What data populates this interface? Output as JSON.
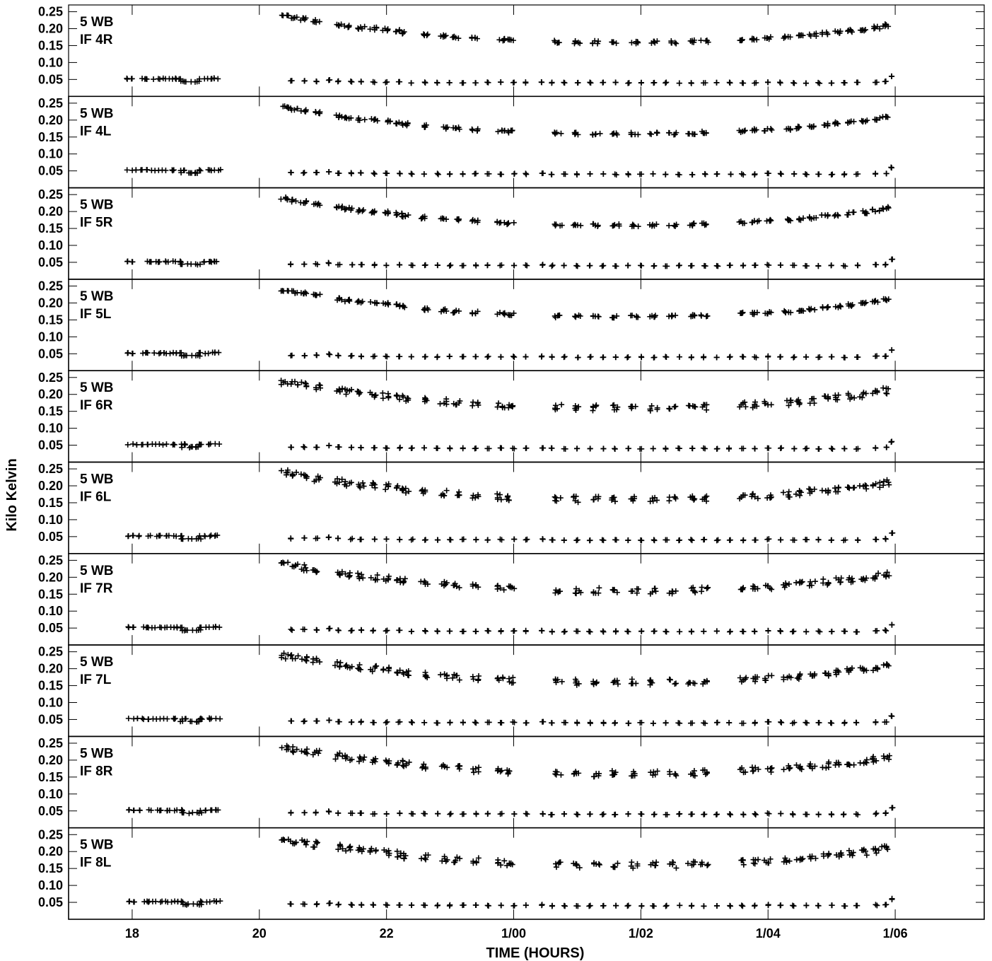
{
  "chart_data": {
    "type": "scatter",
    "xlabel": "TIME (HOURS)",
    "ylabel": "Kilo Kelvin",
    "xlim": [
      17.0,
      31.4
    ],
    "ylim": [
      0.0,
      0.27
    ],
    "x_ticks": [
      {
        "value": 18,
        "label": "18"
      },
      {
        "value": 20,
        "label": "20"
      },
      {
        "value": 22,
        "label": "22"
      },
      {
        "value": 24,
        "label": "1/00"
      },
      {
        "value": 26,
        "label": "1/02"
      },
      {
        "value": 28,
        "label": "1/04"
      },
      {
        "value": 30,
        "label": "1/06"
      }
    ],
    "y_ticks": [
      {
        "value": 0.25,
        "label": "0.25"
      },
      {
        "value": 0.2,
        "label": "0.20"
      },
      {
        "value": 0.15,
        "label": "0.15"
      },
      {
        "value": 0.1,
        "label": "0.10"
      },
      {
        "value": 0.05,
        "label": "0.05"
      }
    ],
    "marker": "+",
    "panels": [
      {
        "line1": "5 WB",
        "line2": "IF 4R"
      },
      {
        "line1": "5 WB",
        "line2": "IF 4L"
      },
      {
        "line1": "5 WB",
        "line2": "IF 5R"
      },
      {
        "line1": "5 WB",
        "line2": "IF 5L"
      },
      {
        "line1": "5 WB",
        "line2": "IF 6R"
      },
      {
        "line1": "5 WB",
        "line2": "IF 6L"
      },
      {
        "line1": "5 WB",
        "line2": "IF 7R"
      },
      {
        "line1": "5 WB",
        "line2": "IF 7L"
      },
      {
        "line1": "5 WB",
        "line2": "IF 8R"
      },
      {
        "line1": "5 WB",
        "line2": "IF 8L"
      }
    ],
    "series": [
      {
        "role": "calibrator",
        "points": [
          [
            18.0,
            0.052
          ],
          [
            18.2,
            0.052
          ],
          [
            18.4,
            0.052
          ],
          [
            18.6,
            0.052
          ],
          [
            18.75,
            0.052
          ],
          [
            18.85,
            0.044
          ],
          [
            19.0,
            0.044
          ],
          [
            19.15,
            0.052
          ],
          [
            19.3,
            0.053
          ],
          [
            20.5,
            0.045
          ],
          [
            20.7,
            0.045
          ],
          [
            20.9,
            0.045
          ],
          [
            21.1,
            0.048
          ],
          [
            21.25,
            0.044
          ],
          [
            21.45,
            0.043
          ],
          [
            21.6,
            0.043
          ],
          [
            21.8,
            0.042
          ],
          [
            22.0,
            0.042
          ],
          [
            22.2,
            0.042
          ],
          [
            22.4,
            0.041
          ],
          [
            22.6,
            0.041
          ],
          [
            22.8,
            0.041
          ],
          [
            23.0,
            0.041
          ],
          [
            23.2,
            0.041
          ],
          [
            23.4,
            0.041
          ],
          [
            23.6,
            0.041
          ],
          [
            23.8,
            0.041
          ],
          [
            24.0,
            0.041
          ],
          [
            24.2,
            0.041
          ],
          [
            24.45,
            0.042
          ],
          [
            24.6,
            0.04
          ],
          [
            24.8,
            0.04
          ],
          [
            25.0,
            0.04
          ],
          [
            25.2,
            0.04
          ],
          [
            25.4,
            0.04
          ],
          [
            25.6,
            0.04
          ],
          [
            25.8,
            0.04
          ],
          [
            26.0,
            0.04
          ],
          [
            26.2,
            0.04
          ],
          [
            26.4,
            0.04
          ],
          [
            26.6,
            0.04
          ],
          [
            26.8,
            0.04
          ],
          [
            27.0,
            0.04
          ],
          [
            27.2,
            0.04
          ],
          [
            27.4,
            0.04
          ],
          [
            27.6,
            0.04
          ],
          [
            27.8,
            0.04
          ],
          [
            28.0,
            0.042
          ],
          [
            28.2,
            0.041
          ],
          [
            28.4,
            0.04
          ],
          [
            28.6,
            0.04
          ],
          [
            28.8,
            0.04
          ],
          [
            29.0,
            0.04
          ],
          [
            29.2,
            0.04
          ],
          [
            29.4,
            0.04
          ],
          [
            29.7,
            0.042
          ],
          [
            29.85,
            0.043
          ],
          [
            29.95,
            0.06
          ]
        ]
      },
      {
        "role": "target",
        "points": [
          [
            20.4,
            0.238
          ],
          [
            20.55,
            0.232
          ],
          [
            20.7,
            0.228
          ],
          [
            20.9,
            0.222
          ],
          [
            21.25,
            0.212
          ],
          [
            21.4,
            0.208
          ],
          [
            21.6,
            0.203
          ],
          [
            21.8,
            0.2
          ],
          [
            22.0,
            0.197
          ],
          [
            22.2,
            0.193
          ],
          [
            22.3,
            0.188
          ],
          [
            22.6,
            0.182
          ],
          [
            22.9,
            0.178
          ],
          [
            23.1,
            0.175
          ],
          [
            23.4,
            0.172
          ],
          [
            23.8,
            0.168
          ],
          [
            23.95,
            0.166
          ],
          [
            24.7,
            0.161
          ],
          [
            25.0,
            0.16
          ],
          [
            25.3,
            0.16
          ],
          [
            25.6,
            0.16
          ],
          [
            25.9,
            0.16
          ],
          [
            26.2,
            0.16
          ],
          [
            26.5,
            0.16
          ],
          [
            26.8,
            0.162
          ],
          [
            27.0,
            0.163
          ],
          [
            27.6,
            0.168
          ],
          [
            27.8,
            0.17
          ],
          [
            28.0,
            0.172
          ],
          [
            28.3,
            0.175
          ],
          [
            28.5,
            0.178
          ],
          [
            28.7,
            0.182
          ],
          [
            28.9,
            0.186
          ],
          [
            29.1,
            0.19
          ],
          [
            29.3,
            0.194
          ],
          [
            29.5,
            0.198
          ],
          [
            29.7,
            0.203
          ],
          [
            29.85,
            0.21
          ]
        ]
      }
    ]
  }
}
